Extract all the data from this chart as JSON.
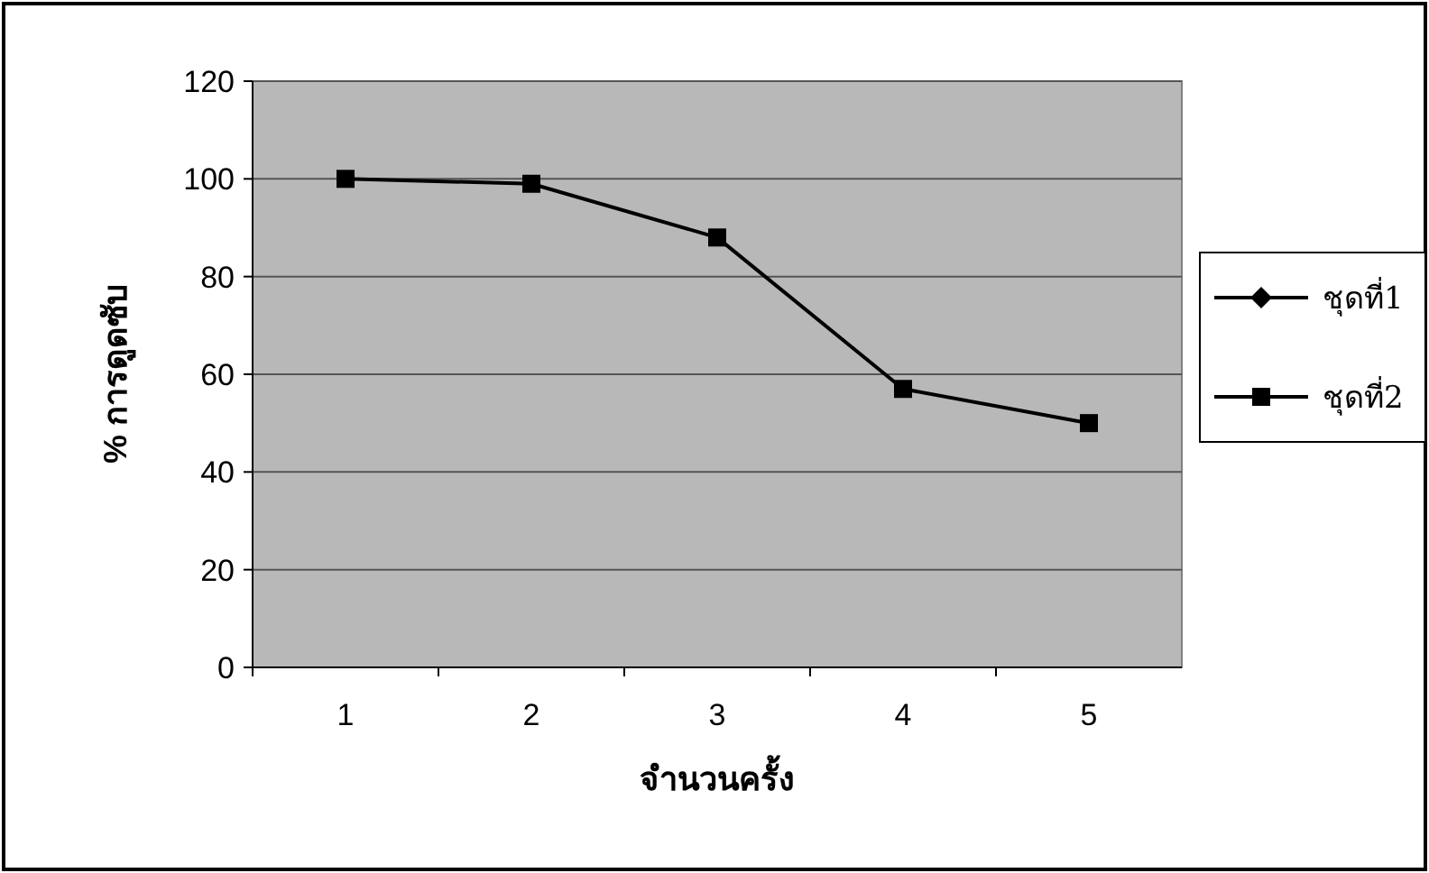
{
  "chart_data": {
    "type": "line",
    "xlabel": "จำนวนครั้ง",
    "ylabel": "% การดูดซับ",
    "categories": [
      "1",
      "2",
      "3",
      "4",
      "5"
    ],
    "series": [
      {
        "name": "ชุดที่1",
        "color": "#000000",
        "marker": "diamond",
        "values": [
          null,
          null,
          null,
          null,
          null
        ]
      },
      {
        "name": "ชุดที่2",
        "color": "#000000",
        "marker": "square",
        "values": [
          100,
          99,
          88,
          57,
          50
        ]
      }
    ],
    "ylim": [
      0,
      120
    ],
    "yticks": [
      0,
      20,
      40,
      60,
      80,
      100,
      120
    ],
    "grid": "y",
    "legend": "right"
  }
}
